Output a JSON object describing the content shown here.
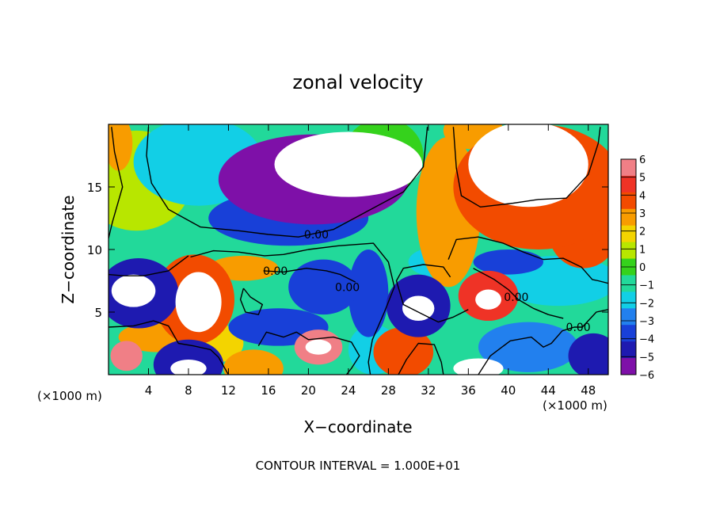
{
  "chart_data": {
    "type": "heatmap",
    "title": "zonal velocity",
    "xlabel": "X−coordinate",
    "ylabel": "Z−coordinate",
    "x_unit_left": "(×1000 m)",
    "x_unit_right": "(×1000 m)",
    "footer": "CONTOUR INTERVAL = 1.000E+01",
    "xlim": [
      0,
      50
    ],
    "ylim": [
      0,
      20
    ],
    "x_ticks": [
      4,
      8,
      12,
      16,
      20,
      24,
      28,
      32,
      36,
      40,
      44,
      48
    ],
    "y_ticks": [
      5,
      10,
      15
    ],
    "colorbar": {
      "min": -6,
      "max": 6,
      "levels": [
        6,
        5,
        4,
        3,
        2,
        1,
        0,
        -1,
        -2,
        -3,
        -4,
        -5,
        -6
      ],
      "labels": [
        "6",
        "5",
        "4",
        "3",
        "2",
        "1",
        "0",
        "−1",
        "−2",
        "−3",
        "−4",
        "−5",
        "−6"
      ],
      "colors": [
        "#f07f86",
        "#ef3326",
        "#f24b00",
        "#f89c00",
        "#f3d400",
        "#b8e600",
        "#35d21c",
        "#22d99a",
        "#12cfe6",
        "#2280ee",
        "#1840d8",
        "#1e1ab0",
        "#7e10a8"
      ]
    },
    "contour_labels": [
      {
        "text": "0.00",
        "x": 20.8,
        "z": 11.2
      },
      {
        "text": "0.00",
        "x": 16.7,
        "z": 8.3
      },
      {
        "text": "0.00",
        "x": 23.9,
        "z": 7.0
      },
      {
        "text": "0.00",
        "x": 40.8,
        "z": 6.2
      },
      {
        "text": "0.00",
        "x": 47.0,
        "z": 3.8
      }
    ],
    "features": [
      {
        "kind": "blob",
        "x": 24.0,
        "z": 16.8,
        "rx": 7.4,
        "rz": 2.6,
        "value": -9
      },
      {
        "kind": "blob",
        "x": 20.5,
        "z": 15.6,
        "rx": 9.5,
        "rz": 3.6,
        "value": -5.5
      },
      {
        "kind": "blob",
        "x": 18.0,
        "z": 12.5,
        "rx": 8.0,
        "rz": 2.2,
        "value": -4
      },
      {
        "kind": "blob",
        "x": 42.0,
        "z": 16.8,
        "rx": 6.0,
        "rz": 3.4,
        "value": 9
      },
      {
        "kind": "blob",
        "x": 43.0,
        "z": 15.0,
        "rx": 8.5,
        "rz": 5.0,
        "value": 4.5
      },
      {
        "kind": "blob",
        "x": 34.0,
        "z": 13.0,
        "rx": 3.2,
        "rz": 6.0,
        "value": 3.2
      },
      {
        "kind": "blob",
        "x": 36.5,
        "z": 19.5,
        "rx": 3.0,
        "rz": 1.5,
        "value": 3
      },
      {
        "kind": "blob",
        "x": 1.0,
        "z": 18.5,
        "rx": 1.4,
        "rz": 2.2,
        "value": 3
      },
      {
        "kind": "blob",
        "x": 2.8,
        "z": 15.5,
        "rx": 5.5,
        "rz": 4.0,
        "value": 0.6
      },
      {
        "kind": "blob",
        "x": 9.0,
        "z": 17.0,
        "rx": 6.5,
        "rz": 3.5,
        "value": -2.2
      },
      {
        "kind": "blob",
        "x": 27.5,
        "z": 17.5,
        "rx": 4.0,
        "rz": 3.0,
        "value": 0
      },
      {
        "kind": "blob",
        "x": 27.0,
        "z": 11.0,
        "rx": 7.0,
        "rz": 2.5,
        "value": -0.8
      },
      {
        "kind": "blob",
        "x": 47.5,
        "z": 11.5,
        "rx": 3.5,
        "rz": 3.0,
        "value": 4
      },
      {
        "kind": "blob",
        "x": 9.0,
        "z": 5.8,
        "rx": 2.3,
        "rz": 2.4,
        "value": 9
      },
      {
        "kind": "blob",
        "x": 8.6,
        "z": 6.0,
        "rx": 4.0,
        "rz": 3.6,
        "value": 4
      },
      {
        "kind": "blob",
        "x": 2.5,
        "z": 6.7,
        "rx": 2.2,
        "rz": 1.3,
        "value": -9
      },
      {
        "kind": "blob",
        "x": 3.0,
        "z": 6.5,
        "rx": 4.0,
        "rz": 2.8,
        "value": -5
      },
      {
        "kind": "blob",
        "x": 1.8,
        "z": 1.5,
        "rx": 1.6,
        "rz": 1.2,
        "value": 6
      },
      {
        "kind": "blob",
        "x": 8.0,
        "z": 0.8,
        "rx": 3.5,
        "rz": 2.0,
        "value": -5
      },
      {
        "kind": "blob",
        "x": 8.0,
        "z": 0.5,
        "rx": 1.8,
        "rz": 0.7,
        "value": -9
      },
      {
        "kind": "blob",
        "x": 14.5,
        "z": 0.5,
        "rx": 3.0,
        "rz": 1.5,
        "value": 3.5
      },
      {
        "kind": "blob",
        "x": 21.0,
        "z": 2.2,
        "rx": 2.4,
        "rz": 1.4,
        "value": 6
      },
      {
        "kind": "blob",
        "x": 21.0,
        "z": 2.2,
        "rx": 1.3,
        "rz": 0.6,
        "value": 9
      },
      {
        "kind": "blob",
        "x": 17.0,
        "z": 3.8,
        "rx": 5.0,
        "rz": 1.5,
        "value": -4
      },
      {
        "kind": "blob",
        "x": 21.5,
        "z": 7.0,
        "rx": 3.5,
        "rz": 2.2,
        "value": -4
      },
      {
        "kind": "blob",
        "x": 26.0,
        "z": 6.5,
        "rx": 2.0,
        "rz": 3.5,
        "value": -3.5
      },
      {
        "kind": "blob",
        "x": 31.0,
        "z": 5.3,
        "rx": 1.6,
        "rz": 1.0,
        "value": -9
      },
      {
        "kind": "blob",
        "x": 31.0,
        "z": 5.5,
        "rx": 3.2,
        "rz": 2.5,
        "value": -5
      },
      {
        "kind": "blob",
        "x": 29.5,
        "z": 1.8,
        "rx": 3.0,
        "rz": 2.0,
        "value": 4
      },
      {
        "kind": "blob",
        "x": 26.5,
        "z": 2.0,
        "rx": 2.5,
        "rz": 2.0,
        "value": -2
      },
      {
        "kind": "blob",
        "x": 38.0,
        "z": 6.3,
        "rx": 3.0,
        "rz": 2.0,
        "value": 5.5
      },
      {
        "kind": "blob",
        "x": 38.0,
        "z": 6.0,
        "rx": 1.3,
        "rz": 0.8,
        "value": 9
      },
      {
        "kind": "blob",
        "x": 42.0,
        "z": 2.2,
        "rx": 5.0,
        "rz": 2.0,
        "value": -2.5
      },
      {
        "kind": "blob",
        "x": 48.5,
        "z": 1.5,
        "rx": 2.5,
        "rz": 1.8,
        "value": -4.5
      },
      {
        "kind": "blob",
        "x": 37.0,
        "z": 0.5,
        "rx": 2.5,
        "rz": 0.8,
        "value": -9
      },
      {
        "kind": "blob",
        "x": 45.0,
        "z": 7.5,
        "rx": 6.0,
        "rz": 2.0,
        "value": -1.5
      },
      {
        "kind": "blob",
        "x": 11.0,
        "z": 2.5,
        "rx": 2.5,
        "rz": 1.5,
        "value": 2.5
      },
      {
        "kind": "blob",
        "x": 5.0,
        "z": 3.0,
        "rx": 4.0,
        "rz": 1.2,
        "value": 3.5
      },
      {
        "kind": "blob",
        "x": 13.5,
        "z": 8.5,
        "rx": 3.5,
        "rz": 1.0,
        "value": 3
      },
      {
        "kind": "blob",
        "x": 33.0,
        "z": 9.0,
        "rx": 3.0,
        "rz": 1.2,
        "value": -2
      },
      {
        "kind": "blob",
        "x": 40.0,
        "z": 9.0,
        "rx": 3.5,
        "rz": 1.0,
        "value": -3.5
      }
    ],
    "zero_contours": [
      [
        [
          0.3,
          19.8
        ],
        [
          0.6,
          17.8
        ],
        [
          1.4,
          15.0
        ],
        [
          0.4,
          12.2
        ],
        [
          0.0,
          10.9
        ]
      ],
      [
        [
          4.0,
          19.8
        ],
        [
          3.8,
          17.5
        ],
        [
          4.3,
          15.3
        ],
        [
          6.0,
          13.2
        ],
        [
          9.2,
          11.8
        ],
        [
          13.0,
          11.5
        ],
        [
          16.0,
          11.2
        ],
        [
          19.0,
          11.0
        ],
        [
          22.5,
          11.6
        ],
        [
          26.0,
          13.1
        ],
        [
          29.5,
          14.6
        ],
        [
          31.5,
          16.6
        ],
        [
          31.9,
          19.8
        ]
      ],
      [
        [
          8.2,
          9.4
        ],
        [
          10.5,
          9.9
        ],
        [
          13.0,
          9.8
        ],
        [
          15.6,
          9.5
        ],
        [
          17.5,
          9.6
        ],
        [
          20.0,
          10.0
        ],
        [
          23.0,
          10.3
        ],
        [
          26.5,
          10.5
        ],
        [
          28.0,
          9.0
        ],
        [
          28.6,
          7.0
        ],
        [
          27.6,
          5.0
        ],
        [
          26.4,
          2.8
        ],
        [
          26.0,
          1.0
        ],
        [
          26.2,
          0.0
        ]
      ],
      [
        [
          8.0,
          9.5
        ],
        [
          6.0,
          8.3
        ],
        [
          3.5,
          7.9
        ],
        [
          1.5,
          7.9
        ],
        [
          0.0,
          8.0
        ]
      ],
      [
        [
          0.0,
          3.8
        ],
        [
          2.5,
          3.9
        ],
        [
          4.5,
          4.3
        ],
        [
          6.0,
          3.9
        ],
        [
          7.0,
          2.5
        ],
        [
          8.5,
          2.3
        ],
        [
          10.2,
          2.0
        ],
        [
          11.0,
          1.4
        ],
        [
          12.0,
          0.0
        ]
      ],
      [
        [
          15.5,
          8.3
        ],
        [
          17.5,
          8.2
        ],
        [
          19.8,
          8.5
        ],
        [
          21.8,
          8.3
        ],
        [
          23.2,
          8.0
        ],
        [
          24.7,
          7.4
        ]
      ],
      [
        [
          13.5,
          6.9
        ],
        [
          14.2,
          6.2
        ],
        [
          15.4,
          5.6
        ],
        [
          15.0,
          4.8
        ],
        [
          13.7,
          5.0
        ],
        [
          13.2,
          6.0
        ],
        [
          13.5,
          6.9
        ]
      ],
      [
        [
          15.0,
          2.3
        ],
        [
          15.8,
          3.4
        ],
        [
          17.5,
          3.0
        ],
        [
          18.8,
          3.4
        ],
        [
          20.0,
          2.8
        ],
        [
          22.5,
          3.0
        ],
        [
          24.3,
          2.6
        ],
        [
          25.1,
          1.5
        ],
        [
          24.3,
          0.5
        ],
        [
          23.8,
          0.0
        ]
      ],
      [
        [
          34.5,
          19.8
        ],
        [
          34.8,
          16.5
        ],
        [
          35.3,
          14.3
        ],
        [
          37.2,
          13.4
        ],
        [
          40.5,
          13.7
        ],
        [
          43.0,
          14.0
        ],
        [
          45.8,
          14.1
        ],
        [
          48.0,
          16.0
        ],
        [
          49.0,
          18.5
        ],
        [
          49.2,
          19.8
        ]
      ],
      [
        [
          34.0,
          9.2
        ],
        [
          34.8,
          10.8
        ],
        [
          37.0,
          11.0
        ],
        [
          39.5,
          10.5
        ],
        [
          41.5,
          9.8
        ],
        [
          43.5,
          9.2
        ],
        [
          45.5,
          9.3
        ],
        [
          47.3,
          8.6
        ],
        [
          48.4,
          7.6
        ],
        [
          49.0,
          7.5
        ],
        [
          50.0,
          7.3
        ]
      ],
      [
        [
          36.5,
          8.5
        ],
        [
          38.6,
          7.6
        ],
        [
          40.0,
          6.8
        ],
        [
          41.0,
          6.0
        ],
        [
          42.5,
          5.3
        ],
        [
          44.0,
          4.8
        ],
        [
          45.5,
          4.5
        ]
      ],
      [
        [
          37.0,
          0.0
        ],
        [
          38.2,
          1.5
        ],
        [
          40.2,
          2.7
        ],
        [
          42.3,
          3.0
        ],
        [
          43.5,
          2.2
        ],
        [
          44.3,
          2.5
        ],
        [
          45.4,
          3.5
        ],
        [
          46.6,
          3.8
        ],
        [
          47.4,
          3.8
        ],
        [
          48.8,
          5.0
        ],
        [
          50.0,
          5.2
        ]
      ],
      [
        [
          29.0,
          0.0
        ],
        [
          29.8,
          1.2
        ],
        [
          31.0,
          2.5
        ],
        [
          32.6,
          2.4
        ],
        [
          33.3,
          1.0
        ],
        [
          33.5,
          0.0
        ]
      ],
      [
        [
          36.0,
          5.2
        ],
        [
          34.5,
          4.6
        ],
        [
          33.0,
          4.2
        ],
        [
          31.5,
          4.8
        ],
        [
          29.5,
          5.6
        ],
        [
          28.8,
          7.5
        ],
        [
          29.5,
          8.5
        ],
        [
          31.5,
          8.8
        ],
        [
          33.5,
          8.6
        ],
        [
          34.2,
          7.8
        ]
      ]
    ]
  }
}
